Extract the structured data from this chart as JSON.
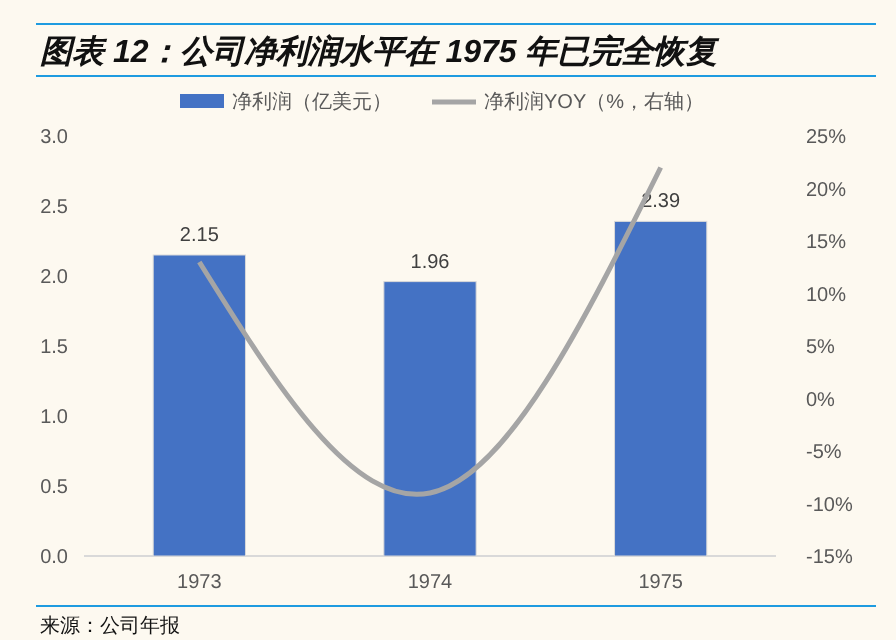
{
  "chart_data": {
    "type": "bar",
    "title": "图表 12：公司净利润水平在 1975 年已完全恢复",
    "categories": [
      "1973",
      "1974",
      "1975"
    ],
    "series": [
      {
        "name": "净利润（亿美元）",
        "color": "#4472c4",
        "values": [
          2.15,
          1.96,
          2.39
        ],
        "value_labels": [
          "2.15",
          "1.96",
          "2.39"
        ]
      },
      {
        "name": "净利润YOY（%，右轴）",
        "type": "line",
        "axis": "y2",
        "color": "#a5a5a5",
        "values": [
          13,
          -9,
          22
        ]
      }
    ],
    "ylim": [
      0,
      3
    ],
    "yticks": [
      {
        "value": 0,
        "label": "0.0"
      },
      {
        "value": 0.5,
        "label": "0.5"
      },
      {
        "value": 1,
        "label": "1.0"
      },
      {
        "value": 1.5,
        "label": "1.5"
      },
      {
        "value": 2,
        "label": "2.0"
      },
      {
        "value": 2.5,
        "label": "2.5"
      },
      {
        "value": 3,
        "label": "3.0"
      }
    ],
    "y2lim": [
      -15,
      25
    ],
    "y2ticks": [
      {
        "value": -15,
        "label": "-15%"
      },
      {
        "value": -10,
        "label": "-10%"
      },
      {
        "value": -5,
        "label": "-5%"
      },
      {
        "value": 0,
        "label": "0%"
      },
      {
        "value": 5,
        "label": "5%"
      },
      {
        "value": 10,
        "label": "10%"
      },
      {
        "value": 15,
        "label": "15%"
      },
      {
        "value": 20,
        "label": "20%"
      },
      {
        "value": 25,
        "label": "25%"
      }
    ],
    "legend": "top",
    "grid": false,
    "marker": "none",
    "annotations": [
      "来源：公司年报"
    ]
  }
}
